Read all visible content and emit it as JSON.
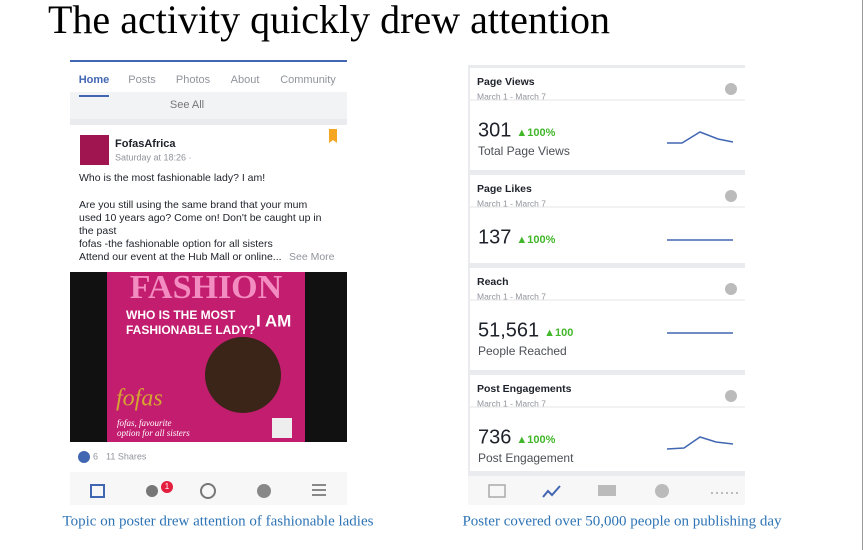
{
  "title": "The activity quickly drew attention",
  "left": {
    "tabs": [
      "Home",
      "Posts",
      "Photos",
      "About",
      "Community"
    ],
    "see_all": "See All",
    "post": {
      "author": "FofasAfrica",
      "time": "Saturday at 18:26 · ",
      "lines": [
        "Who is the most fashionable lady? I am!",
        "Are you still using the same brand that your mum",
        "used 10 years ago? Come on! Don't be caught up in",
        "the past",
        "fofas -the fashionable option for all sisters",
        "Attend our event at the Hub Mall or online..."
      ],
      "see_more": "See More",
      "poster": {
        "headline": "FASHION",
        "question_1": "WHO IS THE MOST",
        "question_2": "FASHIONABLE LADY?",
        "answer": "I AM",
        "brand": "fofas",
        "slogan_1": "fofas, favourite",
        "slogan_2": "option for all sisters"
      },
      "reactions": "6",
      "shares": "11 Shares"
    },
    "badge": "1"
  },
  "right": {
    "cards": [
      {
        "title": "Page Views",
        "dates": "March 1 - March 7",
        "value": "301",
        "change": "▲100%",
        "label": "Total Page Views"
      },
      {
        "title": "Page Likes",
        "dates": "March 1 - March 7",
        "value": "137",
        "change": "▲100%"
      },
      {
        "title": "Reach",
        "dates": "March 1 - March 7",
        "value": "51,561",
        "change": "▲100",
        "label": "People Reached"
      },
      {
        "title": "Post Engagements",
        "dates": "March 1 - March 7",
        "value": "736",
        "change": "▲100%",
        "label": "Post Engagement"
      }
    ]
  },
  "captions": [
    "Topic on poster drew attention of fashionable ladies",
    "Poster covered over 50,000 people on publishing day"
  ]
}
